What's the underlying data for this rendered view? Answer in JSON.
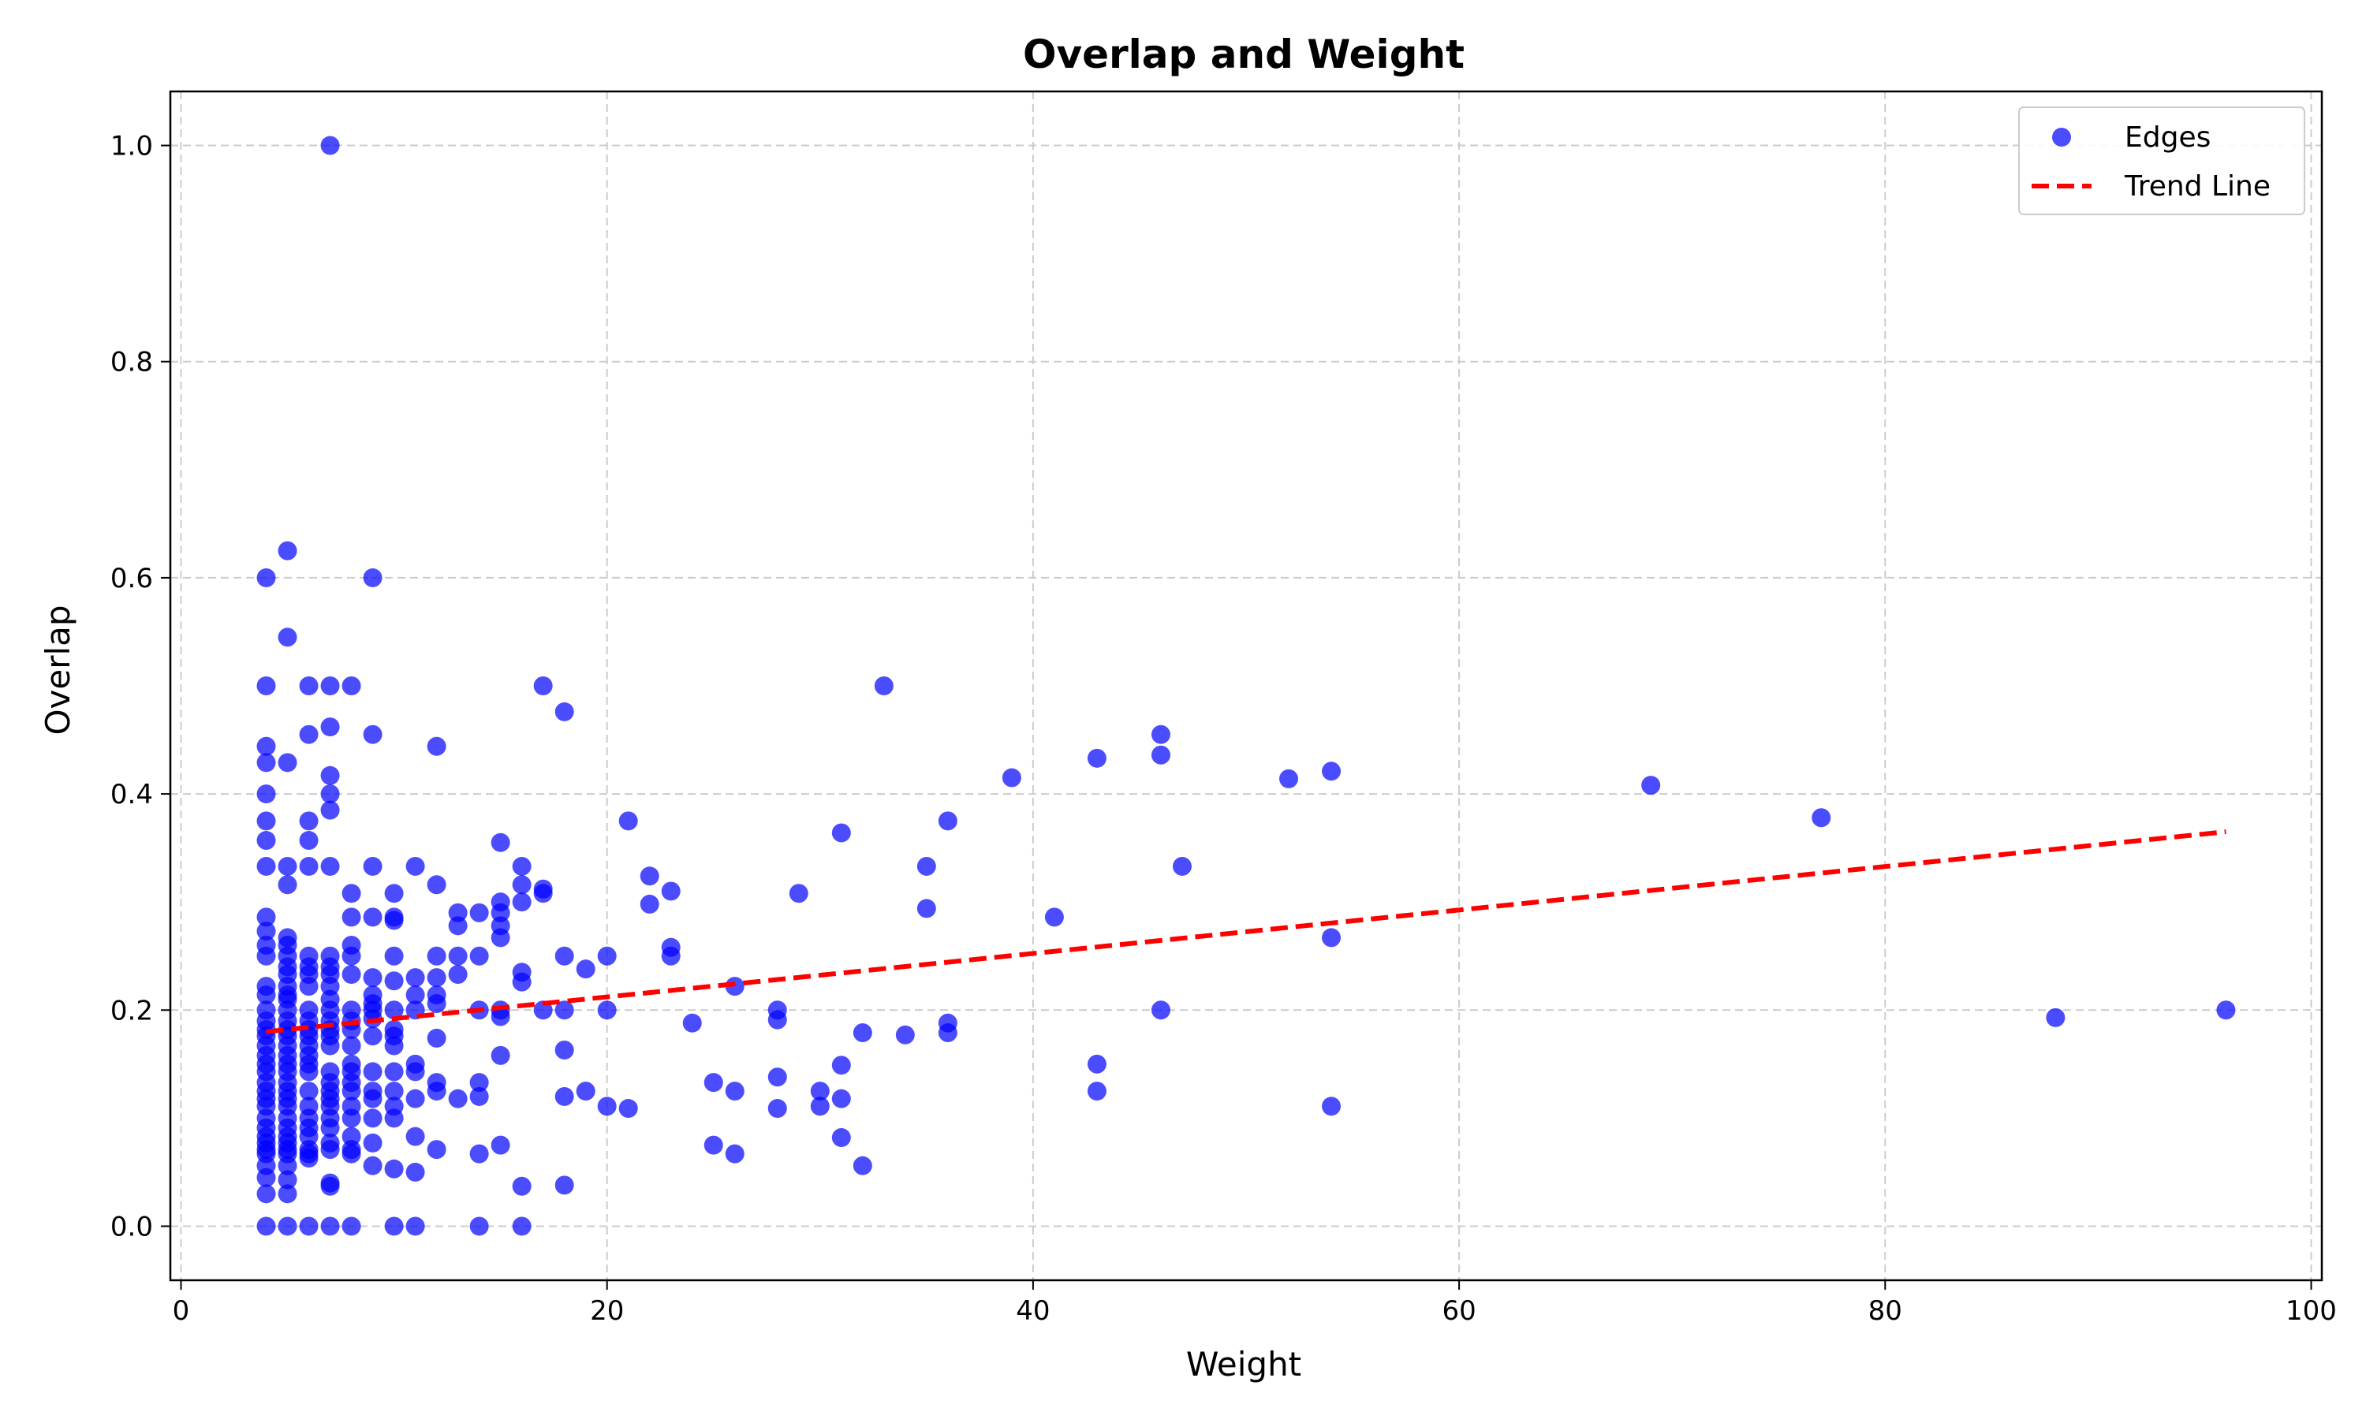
{
  "chart_data": {
    "type": "scatter",
    "title": "Overlap and Weight",
    "xlabel": "Weight",
    "ylabel": "Overlap",
    "xlim": [
      -0.5,
      100.5
    ],
    "ylim": [
      -0.05,
      1.05
    ],
    "xticks": [
      0,
      20,
      40,
      60,
      80,
      100
    ],
    "yticks": [
      0.0,
      0.2,
      0.4,
      0.6,
      0.8,
      1.0
    ],
    "ytick_labels": [
      "0.0",
      "0.2",
      "0.4",
      "0.6",
      "0.8",
      "1.0"
    ],
    "grid": true,
    "legend_position": "top-right",
    "colors": {
      "points": "#0000ff",
      "trend": "#ff0000"
    },
    "series": [
      {
        "name": "Edges",
        "kind": "scatter",
        "points": [
          [
            7,
            1.0
          ],
          [
            5,
            0.625
          ],
          [
            4,
            0.6
          ],
          [
            9,
            0.6
          ],
          [
            5,
            0.545
          ],
          [
            4,
            0.5
          ],
          [
            6,
            0.5
          ],
          [
            7,
            0.5
          ],
          [
            8,
            0.5
          ],
          [
            17,
            0.5
          ],
          [
            33,
            0.5
          ],
          [
            18,
            0.476
          ],
          [
            7,
            0.462
          ],
          [
            6,
            0.455
          ],
          [
            9,
            0.455
          ],
          [
            46,
            0.455
          ],
          [
            4,
            0.444
          ],
          [
            12,
            0.444
          ],
          [
            43,
            0.433
          ],
          [
            46,
            0.436
          ],
          [
            4,
            0.429
          ],
          [
            5,
            0.429
          ],
          [
            54,
            0.421
          ],
          [
            7,
            0.417
          ],
          [
            39,
            0.415
          ],
          [
            52,
            0.414
          ],
          [
            69,
            0.408
          ],
          [
            4,
            0.4
          ],
          [
            7,
            0.4
          ],
          [
            7,
            0.385
          ],
          [
            77,
            0.378
          ],
          [
            4,
            0.375
          ],
          [
            6,
            0.375
          ],
          [
            21,
            0.375
          ],
          [
            36,
            0.375
          ],
          [
            31,
            0.364
          ],
          [
            4,
            0.357
          ],
          [
            6,
            0.357
          ],
          [
            15,
            0.355
          ],
          [
            4,
            0.333
          ],
          [
            5,
            0.333
          ],
          [
            6,
            0.333
          ],
          [
            7,
            0.333
          ],
          [
            9,
            0.333
          ],
          [
            11,
            0.333
          ],
          [
            16,
            0.333
          ],
          [
            35,
            0.333
          ],
          [
            47,
            0.333
          ],
          [
            22,
            0.324
          ],
          [
            5,
            0.316
          ],
          [
            12,
            0.316
          ],
          [
            16,
            0.316
          ],
          [
            17,
            0.312
          ],
          [
            23,
            0.31
          ],
          [
            8,
            0.308
          ],
          [
            10,
            0.308
          ],
          [
            17,
            0.308
          ],
          [
            29,
            0.308
          ],
          [
            15,
            0.3
          ],
          [
            16,
            0.3
          ],
          [
            22,
            0.298
          ],
          [
            35,
            0.294
          ],
          [
            13,
            0.29
          ],
          [
            14,
            0.29
          ],
          [
            15,
            0.29
          ],
          [
            8,
            0.286
          ],
          [
            9,
            0.286
          ],
          [
            10,
            0.286
          ],
          [
            4,
            0.286
          ],
          [
            41,
            0.286
          ],
          [
            10,
            0.283
          ],
          [
            4,
            0.273
          ],
          [
            13,
            0.278
          ],
          [
            15,
            0.278
          ],
          [
            5,
            0.267
          ],
          [
            15,
            0.267
          ],
          [
            54,
            0.267
          ],
          [
            4,
            0.26
          ],
          [
            5,
            0.26
          ],
          [
            8,
            0.26
          ],
          [
            23,
            0.258
          ],
          [
            4,
            0.25
          ],
          [
            5,
            0.25
          ],
          [
            6,
            0.25
          ],
          [
            7,
            0.25
          ],
          [
            8,
            0.25
          ],
          [
            10,
            0.25
          ],
          [
            12,
            0.25
          ],
          [
            13,
            0.25
          ],
          [
            14,
            0.25
          ],
          [
            18,
            0.25
          ],
          [
            20,
            0.25
          ],
          [
            23,
            0.25
          ],
          [
            5,
            0.24
          ],
          [
            6,
            0.24
          ],
          [
            7,
            0.24
          ],
          [
            19,
            0.238
          ],
          [
            16,
            0.235
          ],
          [
            5,
            0.233
          ],
          [
            6,
            0.233
          ],
          [
            7,
            0.233
          ],
          [
            8,
            0.233
          ],
          [
            9,
            0.23
          ],
          [
            11,
            0.23
          ],
          [
            12,
            0.23
          ],
          [
            13,
            0.233
          ],
          [
            16,
            0.226
          ],
          [
            10,
            0.227
          ],
          [
            26,
            0.222
          ],
          [
            4,
            0.222
          ],
          [
            5,
            0.222
          ],
          [
            6,
            0.222
          ],
          [
            7,
            0.222
          ],
          [
            4,
            0.214
          ],
          [
            5,
            0.214
          ],
          [
            9,
            0.214
          ],
          [
            11,
            0.214
          ],
          [
            12,
            0.214
          ],
          [
            5,
            0.21
          ],
          [
            7,
            0.21
          ],
          [
            9,
            0.206
          ],
          [
            12,
            0.206
          ],
          [
            4,
            0.2
          ],
          [
            5,
            0.2
          ],
          [
            6,
            0.2
          ],
          [
            7,
            0.2
          ],
          [
            8,
            0.2
          ],
          [
            9,
            0.2
          ],
          [
            10,
            0.2
          ],
          [
            11,
            0.2
          ],
          [
            14,
            0.2
          ],
          [
            15,
            0.2
          ],
          [
            17,
            0.2
          ],
          [
            18,
            0.2
          ],
          [
            20,
            0.2
          ],
          [
            28,
            0.2
          ],
          [
            46,
            0.2
          ],
          [
            96,
            0.2
          ],
          [
            4,
            0.19
          ],
          [
            5,
            0.19
          ],
          [
            6,
            0.19
          ],
          [
            7,
            0.19
          ],
          [
            8,
            0.19
          ],
          [
            9,
            0.192
          ],
          [
            15,
            0.194
          ],
          [
            28,
            0.191
          ],
          [
            88,
            0.193
          ],
          [
            24,
            0.188
          ],
          [
            36,
            0.188
          ],
          [
            4,
            0.182
          ],
          [
            5,
            0.182
          ],
          [
            6,
            0.182
          ],
          [
            7,
            0.182
          ],
          [
            8,
            0.182
          ],
          [
            10,
            0.182
          ],
          [
            4,
            0.176
          ],
          [
            5,
            0.176
          ],
          [
            6,
            0.176
          ],
          [
            7,
            0.176
          ],
          [
            9,
            0.176
          ],
          [
            10,
            0.176
          ],
          [
            12,
            0.174
          ],
          [
            32,
            0.179
          ],
          [
            34,
            0.177
          ],
          [
            36,
            0.179
          ],
          [
            4,
            0.167
          ],
          [
            5,
            0.167
          ],
          [
            6,
            0.167
          ],
          [
            7,
            0.167
          ],
          [
            8,
            0.167
          ],
          [
            10,
            0.167
          ],
          [
            18,
            0.163
          ],
          [
            4,
            0.158
          ],
          [
            5,
            0.158
          ],
          [
            6,
            0.158
          ],
          [
            15,
            0.158
          ],
          [
            4,
            0.15
          ],
          [
            5,
            0.15
          ],
          [
            6,
            0.15
          ],
          [
            8,
            0.15
          ],
          [
            11,
            0.15
          ],
          [
            31,
            0.149
          ],
          [
            43,
            0.15
          ],
          [
            4,
            0.143
          ],
          [
            5,
            0.143
          ],
          [
            6,
            0.143
          ],
          [
            7,
            0.143
          ],
          [
            8,
            0.143
          ],
          [
            9,
            0.143
          ],
          [
            10,
            0.143
          ],
          [
            11,
            0.143
          ],
          [
            4,
            0.133
          ],
          [
            5,
            0.133
          ],
          [
            7,
            0.133
          ],
          [
            8,
            0.133
          ],
          [
            12,
            0.133
          ],
          [
            14,
            0.133
          ],
          [
            25,
            0.133
          ],
          [
            28,
            0.138
          ],
          [
            4,
            0.125
          ],
          [
            5,
            0.125
          ],
          [
            6,
            0.125
          ],
          [
            7,
            0.125
          ],
          [
            8,
            0.125
          ],
          [
            9,
            0.125
          ],
          [
            10,
            0.125
          ],
          [
            12,
            0.125
          ],
          [
            19,
            0.125
          ],
          [
            26,
            0.125
          ],
          [
            30,
            0.125
          ],
          [
            43,
            0.125
          ],
          [
            4,
            0.118
          ],
          [
            5,
            0.118
          ],
          [
            7,
            0.118
          ],
          [
            9,
            0.118
          ],
          [
            11,
            0.118
          ],
          [
            13,
            0.118
          ],
          [
            14,
            0.12
          ],
          [
            18,
            0.12
          ],
          [
            31,
            0.118
          ],
          [
            4,
            0.111
          ],
          [
            5,
            0.111
          ],
          [
            6,
            0.111
          ],
          [
            7,
            0.111
          ],
          [
            8,
            0.111
          ],
          [
            10,
            0.111
          ],
          [
            20,
            0.111
          ],
          [
            21,
            0.109
          ],
          [
            28,
            0.109
          ],
          [
            30,
            0.111
          ],
          [
            54,
            0.111
          ],
          [
            4,
            0.1
          ],
          [
            5,
            0.1
          ],
          [
            6,
            0.1
          ],
          [
            7,
            0.1
          ],
          [
            8,
            0.1
          ],
          [
            9,
            0.1
          ],
          [
            10,
            0.1
          ],
          [
            4,
            0.091
          ],
          [
            5,
            0.091
          ],
          [
            6,
            0.091
          ],
          [
            7,
            0.091
          ],
          [
            4,
            0.083
          ],
          [
            5,
            0.083
          ],
          [
            6,
            0.083
          ],
          [
            8,
            0.083
          ],
          [
            11,
            0.083
          ],
          [
            31,
            0.082
          ],
          [
            4,
            0.077
          ],
          [
            5,
            0.077
          ],
          [
            7,
            0.077
          ],
          [
            9,
            0.077
          ],
          [
            15,
            0.075
          ],
          [
            25,
            0.075
          ],
          [
            4,
            0.071
          ],
          [
            5,
            0.071
          ],
          [
            6,
            0.071
          ],
          [
            7,
            0.071
          ],
          [
            8,
            0.071
          ],
          [
            12,
            0.071
          ],
          [
            4,
            0.067
          ],
          [
            5,
            0.067
          ],
          [
            6,
            0.067
          ],
          [
            8,
            0.067
          ],
          [
            14,
            0.067
          ],
          [
            26,
            0.067
          ],
          [
            4,
            0.056
          ],
          [
            5,
            0.056
          ],
          [
            6,
            0.063
          ],
          [
            9,
            0.056
          ],
          [
            10,
            0.053
          ],
          [
            11,
            0.05
          ],
          [
            32,
            0.056
          ],
          [
            4,
            0.045
          ],
          [
            5,
            0.043
          ],
          [
            7,
            0.04
          ],
          [
            16,
            0.037
          ],
          [
            18,
            0.038
          ],
          [
            4,
            0.03
          ],
          [
            5,
            0.03
          ],
          [
            7,
            0.037
          ],
          [
            4,
            0.0
          ],
          [
            5,
            0.0
          ],
          [
            6,
            0.0
          ],
          [
            7,
            0.0
          ],
          [
            8,
            0.0
          ],
          [
            10,
            0.0
          ],
          [
            11,
            0.0
          ],
          [
            14,
            0.0
          ],
          [
            16,
            0.0
          ]
        ]
      },
      {
        "name": "Trend Line",
        "kind": "line",
        "points": [
          [
            4,
            0.18
          ],
          [
            96,
            0.365
          ]
        ]
      }
    ]
  }
}
